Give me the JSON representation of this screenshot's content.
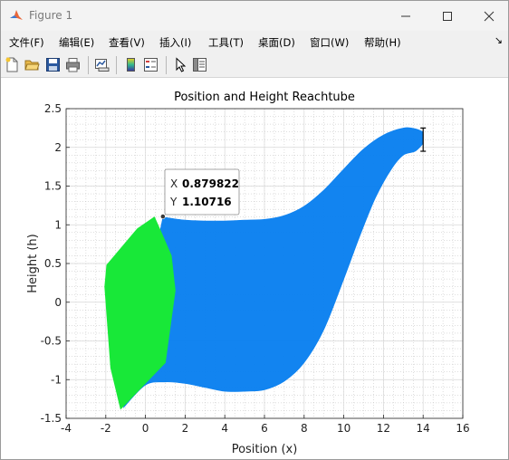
{
  "window": {
    "title": "Figure 1"
  },
  "menu": [
    "文件(F)",
    "编辑(E)",
    "查看(V)",
    "插入(I)",
    "工具(T)",
    "桌面(D)",
    "窗口(W)",
    "帮助(H)"
  ],
  "menu_arrow": "↘",
  "toolbar": [
    "new-figure-icon",
    "open-folder-icon",
    "save-icon",
    "print-icon",
    "link-plot-icon",
    "colorbar-icon",
    "legend-icon",
    "pointer-icon",
    "property-inspector-icon"
  ],
  "colors": {
    "reach_blue": "#0a80f0",
    "initial_green": "#18e838",
    "grid": "#d8d8d8"
  },
  "chart_data": {
    "type": "area",
    "title": "Position and Height Reachtube",
    "xlabel": "Position (x)",
    "ylabel": "Height (h)",
    "xlim": [
      -4,
      16
    ],
    "ylim": [
      -1.5,
      2.5
    ],
    "xticks": [
      "-4",
      "-2",
      "0",
      "2",
      "4",
      "6",
      "8",
      "10",
      "12",
      "14",
      "16"
    ],
    "yticks": [
      "-1.5",
      "-1",
      "-0.5",
      "0",
      "0.5",
      "1",
      "1.5",
      "2",
      "2.5"
    ],
    "grid": true,
    "minor_grid": true,
    "series": [
      {
        "kind": "reachtube",
        "color": "#0a80f0",
        "upper": [
          [
            0.88,
            1.1
          ],
          [
            2,
            1.06
          ],
          [
            3,
            1.05
          ],
          [
            4,
            1.05
          ],
          [
            5,
            1.06
          ],
          [
            6,
            1.07
          ],
          [
            7,
            1.12
          ],
          [
            8,
            1.24
          ],
          [
            9,
            1.45
          ],
          [
            10,
            1.72
          ],
          [
            11,
            1.98
          ],
          [
            12,
            2.16
          ],
          [
            13,
            2.25
          ],
          [
            13.6,
            2.24
          ],
          [
            14,
            2.2
          ]
        ],
        "lower": [
          [
            14,
            2.05
          ],
          [
            13.6,
            1.95
          ],
          [
            13,
            1.9
          ],
          [
            12.4,
            1.72
          ],
          [
            11.6,
            1.35
          ],
          [
            10.8,
            0.85
          ],
          [
            10,
            0.3
          ],
          [
            9,
            -0.35
          ],
          [
            8,
            -0.78
          ],
          [
            7,
            -1.02
          ],
          [
            6,
            -1.13
          ],
          [
            5,
            -1.15
          ],
          [
            4,
            -1.15
          ],
          [
            3,
            -1.1
          ],
          [
            2,
            -1.05
          ],
          [
            1,
            -1.03
          ],
          [
            0,
            -1.07
          ],
          [
            -1.1,
            -1.36
          ]
        ]
      },
      {
        "kind": "initial-set",
        "color": "#18e838",
        "polygon": [
          [
            0.45,
            1.1
          ],
          [
            -0.4,
            0.95
          ],
          [
            -1.95,
            0.48
          ],
          [
            -2.05,
            0.2
          ],
          [
            -1.75,
            -0.85
          ],
          [
            -1.25,
            -1.38
          ],
          [
            1.0,
            -0.78
          ],
          [
            1.5,
            0.15
          ],
          [
            1.3,
            0.6
          ],
          [
            0.8,
            0.9
          ]
        ]
      }
    ],
    "end_marker": {
      "x": 14,
      "y_top": 2.25,
      "y_bottom": 1.95
    },
    "datatip": {
      "x": 0.879822,
      "y": 1.10716,
      "x_label": "X",
      "y_label": "Y",
      "x_text": "0.879822",
      "y_text": "1.10716"
    }
  }
}
